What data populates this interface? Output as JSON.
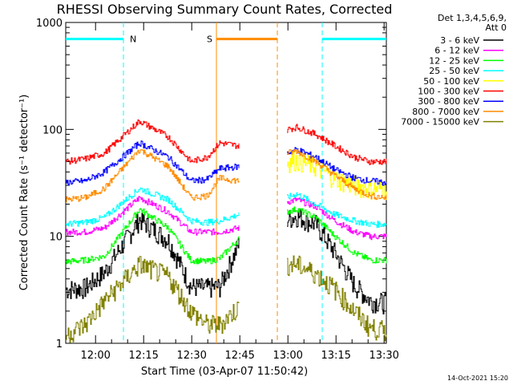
{
  "chart_data": {
    "type": "line",
    "title": "RHESSI Observing Summary Count Rates, Corrected",
    "xlabel": "Start Time (03-Apr-07 11:50:42)",
    "ylabel": "Corrected Count Rate (s⁻¹ detector⁻¹)",
    "yscale": "log",
    "ylim": [
      1,
      1000
    ],
    "xlim_minutes_after_start": [
      0,
      100
    ],
    "x_ticks": [
      "12:00",
      "12:15",
      "12:30",
      "12:45",
      "13:00",
      "13:15",
      "13:30"
    ],
    "y_ticks": [
      "1",
      "10",
      "100",
      "1000"
    ],
    "legend_header": [
      "Det 1,3,4,5,6,9,",
      "Att 0"
    ],
    "grid": false,
    "legend_position": "right",
    "data_gap_minutes": [
      54,
      69
    ],
    "series": [
      {
        "name": "3 - 6 keV",
        "color": "#000000",
        "pre": [
          3.2,
          3.3,
          4.6,
          14.5,
          9.2,
          3.4,
          3.3,
          3.4,
          8.5
        ],
        "post": [
          14.5,
          15.5,
          13,
          7,
          3.5,
          2.5,
          2.4
        ]
      },
      {
        "name": "6 - 12 keV",
        "color": "#ff00ff",
        "pre": [
          11,
          11,
          12,
          23,
          17,
          11,
          11,
          11,
          12
        ],
        "post": [
          21,
          22,
          19,
          14,
          11,
          10,
          10
        ]
      },
      {
        "name": "12 - 25 keV",
        "color": "#00ff00",
        "pre": [
          5.8,
          6.0,
          6.5,
          18,
          12,
          6.0,
          5.8,
          6.2,
          9.5
        ],
        "post": [
          17,
          18,
          15,
          10,
          7,
          6,
          6
        ]
      },
      {
        "name": "25 - 50 keV",
        "color": "#00ffff",
        "pre": [
          13,
          13.5,
          15,
          28,
          22,
          14,
          13.5,
          14,
          16
        ],
        "post": [
          23,
          25,
          20,
          16,
          14,
          13,
          13
        ]
      },
      {
        "name": "50 - 100 keV",
        "color": "#ffff00",
        "pre": [
          0,
          0,
          0,
          0,
          0,
          0,
          0,
          0,
          0
        ],
        "post": [
          50,
          52,
          45,
          35,
          30,
          28,
          28
        ]
      },
      {
        "name": "100 - 300 keV",
        "color": "#ff0000",
        "pre": [
          50,
          53,
          60,
          120,
          85,
          50,
          55,
          75,
          70
        ],
        "post": [
          100,
          105,
          90,
          70,
          55,
          50,
          50
        ]
      },
      {
        "name": "300 - 800 keV",
        "color": "#0000ff",
        "pre": [
          32,
          33,
          40,
          75,
          55,
          33,
          34,
          43,
          45
        ],
        "post": [
          60,
          65,
          55,
          42,
          35,
          33,
          32
        ]
      },
      {
        "name": "800 - 7000 keV",
        "color": "#ff8c00",
        "pre": [
          22,
          23,
          28,
          65,
          45,
          23,
          24,
          35,
          33
        ],
        "post": [
          60,
          63,
          50,
          37,
          28,
          24,
          23
        ]
      },
      {
        "name": "7000 - 15000 keV",
        "color": "#808000",
        "pre": [
          1.2,
          1.5,
          2.5,
          5.5,
          4.2,
          2.0,
          1.5,
          1.5,
          2.2
        ],
        "post": [
          5.5,
          5.5,
          4.5,
          3.2,
          2.0,
          1.4,
          1.3
        ]
      }
    ],
    "pre_x": [
      0,
      6,
      12,
      23,
      32,
      39,
      44,
      48,
      54
    ],
    "post_x": [
      69,
      72,
      78,
      84,
      90,
      95,
      100
    ],
    "annotations": [
      {
        "label": "N",
        "color": "#00ffff",
        "bar_y": 700,
        "bar_x": [
          0,
          18
        ],
        "lines_x": [
          18,
          80
        ],
        "bar2_x": [
          80,
          100
        ]
      },
      {
        "label": "S",
        "color": "#ff8c00",
        "bar_y": 700,
        "bar_x": [
          47,
          66
        ],
        "lines_x": [
          47,
          66
        ]
      }
    ],
    "timestamp": "14-Oct-2021 15:20"
  }
}
